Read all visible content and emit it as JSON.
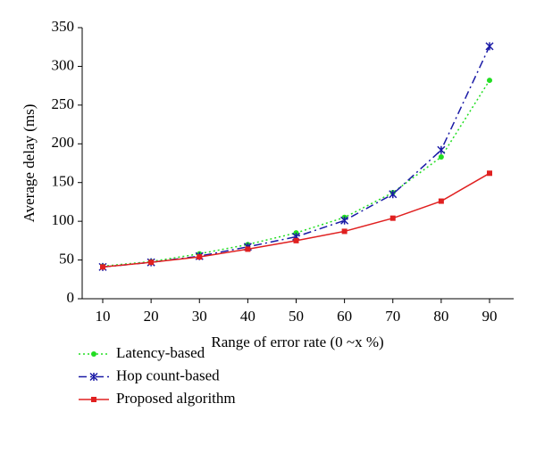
{
  "chart_data": {
    "type": "line",
    "x_label": "Range of error rate (0 ~x %)",
    "y_label": "Average delay (ms)",
    "categories": [
      "10",
      "20",
      "30",
      "40",
      "50",
      "60",
      "70",
      "80",
      "90"
    ],
    "series": [
      {
        "name": "Latency-based",
        "color": "#22dd22",
        "line_style": "dotted",
        "marker": "circle",
        "values": [
          42,
          48,
          58,
          70,
          85,
          105,
          137,
          183,
          282
        ]
      },
      {
        "name": "Hop count-based",
        "color": "#1a1aa6",
        "line_style": "dashdot",
        "marker": "star",
        "values": [
          41,
          47,
          55,
          67,
          80,
          101,
          135,
          192,
          326
        ]
      },
      {
        "name": "Proposed algorithm",
        "color": "#e02020",
        "line_style": "solid",
        "marker": "square",
        "values": [
          41,
          47,
          54,
          64,
          75,
          87,
          104,
          126,
          162
        ]
      }
    ],
    "ylim": [
      0,
      350
    ],
    "yticks": [
      0,
      50,
      100,
      150,
      200,
      250,
      300,
      350
    ],
    "legend": "bottom-left"
  }
}
